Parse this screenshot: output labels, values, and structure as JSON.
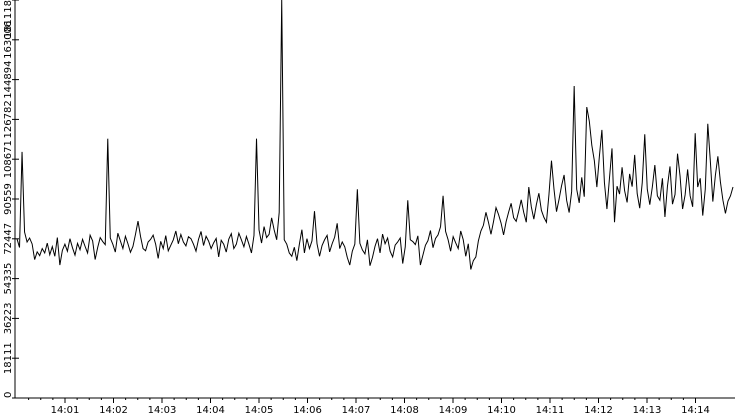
{
  "chart_data": {
    "type": "line",
    "title": "",
    "xlabel": "",
    "ylabel": "",
    "x_tick_labels": [
      "14:01",
      "14:02",
      "14:03",
      "14:04",
      "14:05",
      "14:06",
      "14:07",
      "14:08",
      "14:09",
      "14:10",
      "14:11",
      "14:12",
      "14:13",
      "14:14"
    ],
    "y_ticks": [
      0,
      18111,
      36223,
      54335,
      72447,
      90559,
      108671,
      126782,
      144894,
      163006,
      181118
    ],
    "ylim": [
      0,
      181118
    ],
    "grid": false,
    "legend": "none",
    "line_color": "#000000",
    "series": [
      {
        "values": [
          72447,
          68500,
          112000,
          75500,
          71000,
          72800,
          70100,
          63000,
          66500,
          64800,
          68000,
          66000,
          70500,
          65200,
          68900,
          64500,
          73000,
          60500,
          67200,
          70000,
          66800,
          72500,
          68400,
          65000,
          70400,
          67500,
          72200,
          69000,
          66000,
          74100,
          71500,
          63000,
          68500,
          73000,
          71200,
          69800,
          118000,
          72800,
          70000,
          66400,
          75000,
          71500,
          68000,
          73600,
          70200,
          66300,
          69000,
          74500,
          80500,
          73500,
          68000,
          67000,
          71000,
          72200,
          74100,
          70000,
          63500,
          71300,
          68000,
          73900,
          67000,
          69500,
          72000,
          76000,
          70200,
          74400,
          71000,
          69200,
          73400,
          72500,
          70000,
          66800,
          72200,
          75800,
          69400,
          73600,
          71400,
          68000,
          70600,
          72600,
          64200,
          71800,
          70000,
          66400,
          72300,
          74800,
          68000,
          70000,
          75000,
          72000,
          68800,
          73500,
          70000,
          66000,
          74000,
          118000,
          76500,
          70500,
          78000,
          73000,
          74500,
          82000,
          76500,
          72000,
          84500,
          181118,
          72000,
          70000,
          66000,
          64500,
          68600,
          62500,
          70000,
          76600,
          66000,
          72500,
          68000,
          71500,
          85000,
          70200,
          64500,
          69400,
          72000,
          74000,
          66500,
          70200,
          73200,
          79500,
          68000,
          71000,
          68800,
          64000,
          60500,
          66800,
          70000,
          95000,
          70400,
          67400,
          65600,
          72000,
          60200,
          64000,
          69000,
          72500,
          66000,
          74600,
          70200,
          72800,
          66800,
          64200,
          69600,
          71000,
          72800,
          61200,
          68800,
          90000,
          72000,
          71200,
          69800,
          73800,
          60500,
          65000,
          69500,
          71600,
          76200,
          68400,
          72600,
          74200,
          78000,
          92000,
          75800,
          72000,
          66800,
          73400,
          70600,
          68000,
          76000,
          72000,
          64500,
          70200,
          58500,
          62500,
          64200,
          71500,
          76000,
          78600,
          84500,
          80000,
          74500,
          80200,
          86600,
          83500,
          79600,
          74200,
          80200,
          84600,
          88600,
          82000,
          80400,
          85000,
          90200,
          84400,
          80000,
          96000,
          87000,
          81400,
          88000,
          93200,
          85400,
          82200,
          80000,
          92600,
          108000,
          95000,
          84800,
          90400,
          96600,
          101500,
          90000,
          84400,
          94000,
          142000,
          95000,
          88800,
          100400,
          91600,
          132400,
          126000,
          115000,
          108000,
          96000,
          110000,
          122000,
          98000,
          86000,
          100000,
          113600,
          80000,
          96400,
          92800,
          105000,
          94400,
          89000,
          102000,
          96200,
          110600,
          93000,
          86400,
          98000,
          120000,
          95000,
          88000,
          96000,
          106000,
          92000,
          90000,
          100000,
          82400,
          96400,
          105400,
          88200,
          92600,
          111200,
          101000,
          86000,
          92400,
          104000,
          92000,
          87000,
          120500,
          96000,
          100000,
          83000,
          95000,
          124800,
          108000,
          89400,
          101200,
          110000,
          98400,
          90000,
          84000,
          89600,
          92000,
          96000
        ]
      }
    ]
  }
}
